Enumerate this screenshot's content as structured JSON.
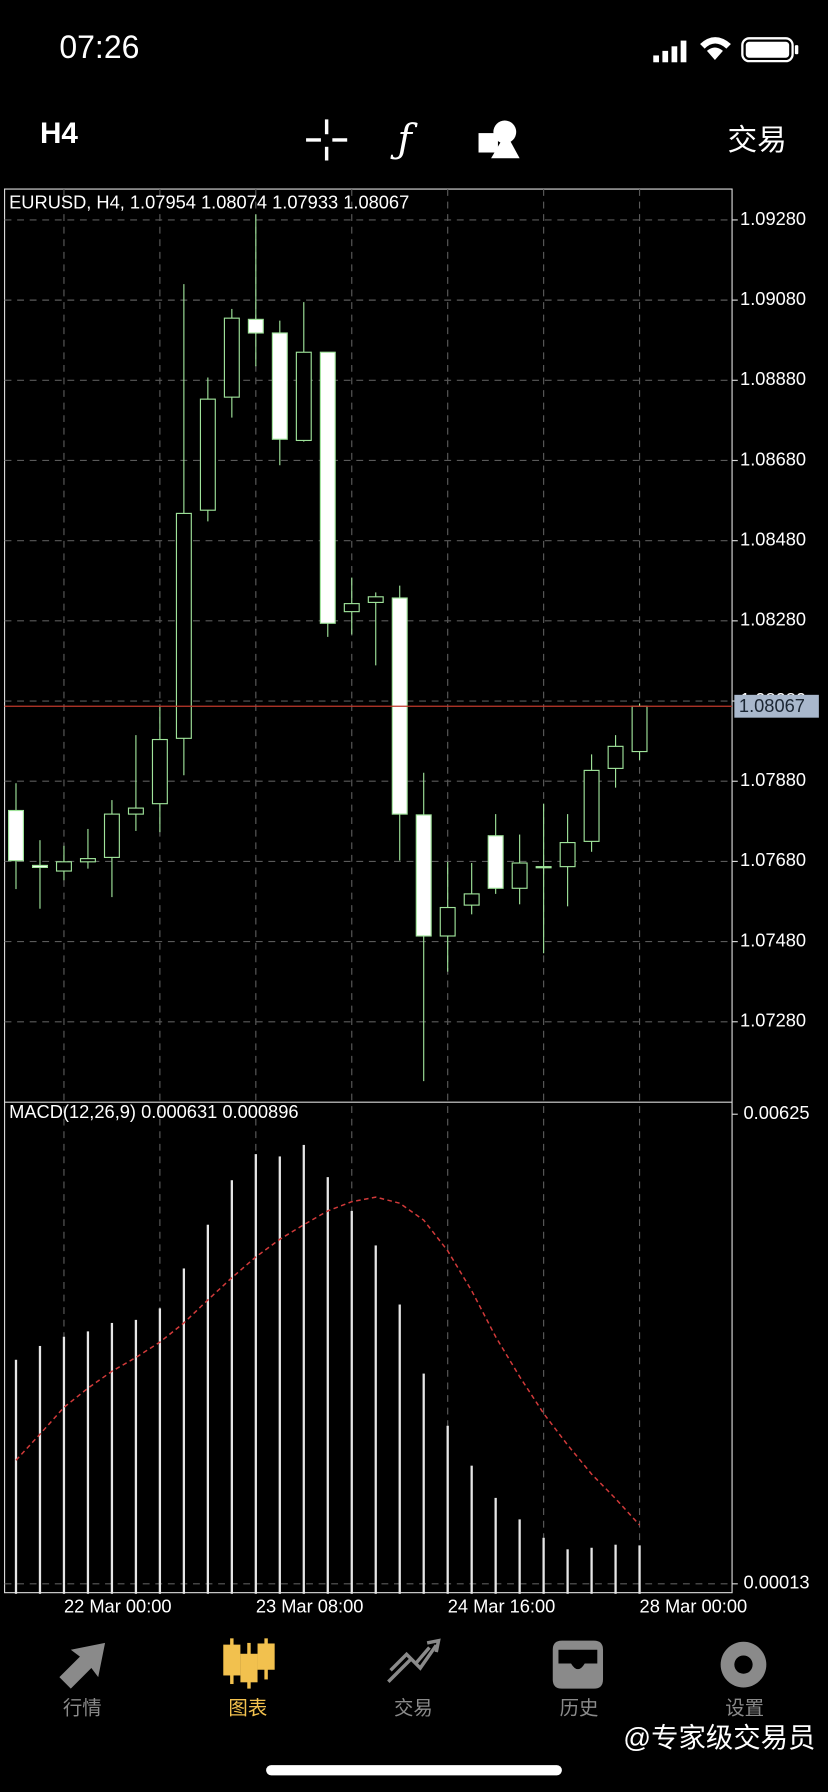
{
  "status_bar": {
    "time": "07:26"
  },
  "toolbar": {
    "timeframe": "H4",
    "trade": "交易"
  },
  "chart_data": [
    {
      "type": "candlestick",
      "title": "EURUSD, H4, 1.07954 1.08074 1.07933 1.08067",
      "categories": [
        null,
        null,
        "22 Mar 00:00",
        null,
        null,
        null,
        null,
        null,
        null,
        null,
        "23 Mar 08:00",
        null,
        null,
        null,
        null,
        null,
        null,
        null,
        "24 Mar 16:00",
        null,
        null,
        null,
        null,
        null,
        null,
        null,
        "28 Mar 00:00"
      ],
      "open": [
        1.07807,
        1.0767,
        1.07656,
        1.07679,
        1.0769,
        1.07798,
        1.07824,
        1.07987,
        1.08556,
        1.08838,
        1.09032,
        1.08998,
        1.0873,
        1.0895,
        1.08303,
        1.08326,
        1.08337,
        1.07796,
        1.07494,
        1.07571,
        1.07744,
        1.07613,
        1.07667,
        1.07667,
        1.0773,
        1.07912,
        1.07954
      ],
      "high": [
        1.07875,
        1.07733,
        1.07719,
        1.07761,
        1.07833,
        1.07995,
        1.08066,
        1.0912,
        1.08887,
        1.09058,
        1.09294,
        1.09029,
        1.09075,
        1.0895,
        1.08388,
        1.08351,
        1.08368,
        1.07901,
        1.07679,
        1.07676,
        1.07798,
        1.07747,
        1.07824,
        1.07798,
        1.07947,
        1.07995,
        1.08074
      ],
      "low": [
        1.07611,
        1.07562,
        1.07633,
        1.07662,
        1.07591,
        1.07756,
        1.07753,
        1.07895,
        1.08528,
        1.08787,
        1.08915,
        1.08668,
        1.08727,
        1.0824,
        1.08246,
        1.08169,
        1.07682,
        1.07132,
        1.07405,
        1.07548,
        1.07599,
        1.07573,
        1.07451,
        1.07568,
        1.07704,
        1.07864,
        1.07933
      ],
      "close": [
        1.07682,
        1.07665,
        1.07679,
        1.07687,
        1.07798,
        1.07813,
        1.07984,
        1.08548,
        1.08833,
        1.09035,
        1.08998,
        1.08733,
        1.0895,
        1.08274,
        1.08323,
        1.0834,
        1.07798,
        1.07494,
        1.07565,
        1.07599,
        1.07613,
        1.07676,
        1.07667,
        1.07727,
        1.07907,
        1.07967,
        1.08067
      ],
      "up_color": "#000000",
      "down_color": "#ffffff",
      "wick_color": "#9fe39a",
      "last_price": 1.08067,
      "last_price_color": "#c0392b",
      "ylim": [
        1.07081,
        1.09357
      ],
      "yticks": [
        {
          "value": 1.0728,
          "label": "1.07280"
        },
        {
          "value": 1.0748,
          "label": "1.07480"
        },
        {
          "value": 1.0768,
          "label": "1.07680"
        },
        {
          "value": 1.0788,
          "label": "1.07880"
        },
        {
          "value": 1.0808,
          "label": "1.08080"
        },
        {
          "value": 1.0828,
          "label": "1.08280"
        },
        {
          "value": 1.0848,
          "label": "1.08480"
        },
        {
          "value": 1.0868,
          "label": "1.08680"
        },
        {
          "value": 1.0888,
          "label": "1.08880"
        },
        {
          "value": 1.0908,
          "label": "1.09080"
        },
        {
          "value": 1.0928,
          "label": "1.09280"
        }
      ],
      "grid": true
    },
    {
      "type": "macd",
      "title": "MACD(12,26,9) 0.000631 0.000896",
      "values": [
        0.00305,
        0.00323,
        0.00335,
        0.00342,
        0.00353,
        0.00357,
        0.00372,
        0.00424,
        0.00481,
        0.00539,
        0.00573,
        0.0057,
        0.00585,
        0.00543,
        0.00499,
        0.00454,
        0.00377,
        0.00287,
        0.00219,
        0.00167,
        0.00125,
        0.00097,
        0.00073,
        0.00058,
        0.0006,
        0.00064,
        0.000631
      ],
      "color": "#e6e6e6",
      "signal": [
        0.00174,
        0.00208,
        0.00243,
        0.00268,
        0.0029,
        0.00308,
        0.00328,
        0.00353,
        0.00383,
        0.00412,
        0.00439,
        0.00462,
        0.00481,
        0.00499,
        0.00511,
        0.00517,
        0.00509,
        0.00487,
        0.00447,
        0.00395,
        0.00335,
        0.00283,
        0.00235,
        0.00194,
        0.00156,
        0.00124,
        0.000896
      ],
      "signal_color": "#d23a3a",
      "ylim": [
        0,
        0.0064
      ],
      "yticks": [
        0.00013,
        0.00625
      ],
      "grid": true
    }
  ],
  "tab_bar": {
    "tabs": [
      "行情",
      "图表",
      "交易",
      "历史",
      "设置"
    ],
    "active": 1,
    "active_color": "#f2c14e",
    "color": "#8a8a8a"
  },
  "watermark": "@专家级交易员"
}
